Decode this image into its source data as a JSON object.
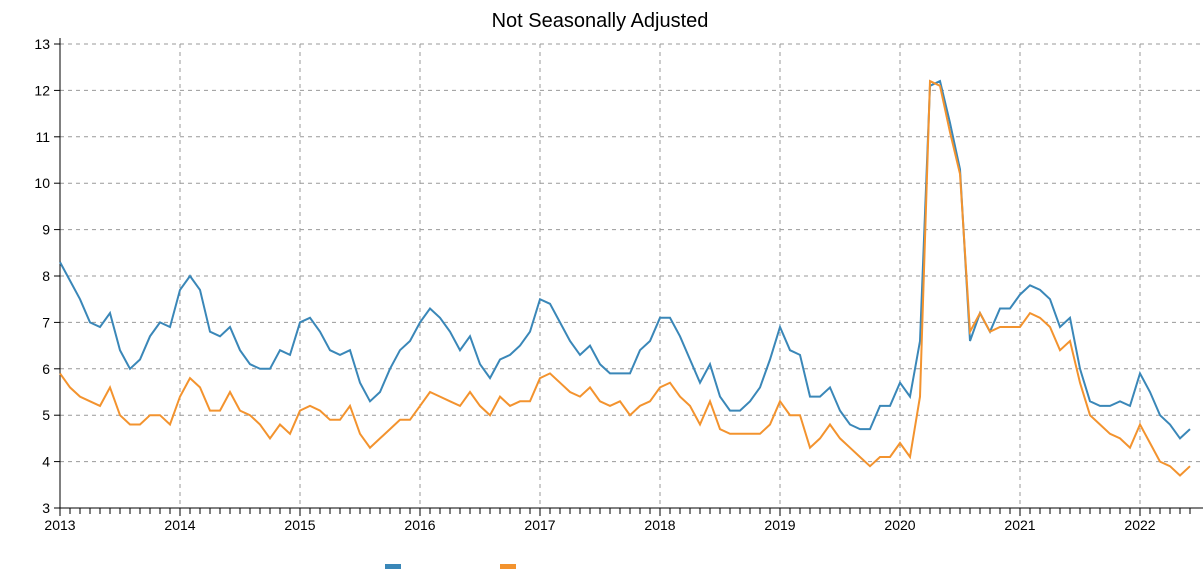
{
  "chart_data": {
    "type": "line",
    "title": "Not Seasonally Adjusted",
    "x": [
      "2013-01",
      "2013-02",
      "2013-03",
      "2013-04",
      "2013-05",
      "2013-06",
      "2013-07",
      "2013-08",
      "2013-09",
      "2013-10",
      "2013-11",
      "2013-12",
      "2014-01",
      "2014-02",
      "2014-03",
      "2014-04",
      "2014-05",
      "2014-06",
      "2014-07",
      "2014-08",
      "2014-09",
      "2014-10",
      "2014-11",
      "2014-12",
      "2015-01",
      "2015-02",
      "2015-03",
      "2015-04",
      "2015-05",
      "2015-06",
      "2015-07",
      "2015-08",
      "2015-09",
      "2015-10",
      "2015-11",
      "2015-12",
      "2016-01",
      "2016-02",
      "2016-03",
      "2016-04",
      "2016-05",
      "2016-06",
      "2016-07",
      "2016-08",
      "2016-09",
      "2016-10",
      "2016-11",
      "2016-12",
      "2017-01",
      "2017-02",
      "2017-03",
      "2017-04",
      "2017-05",
      "2017-06",
      "2017-07",
      "2017-08",
      "2017-09",
      "2017-10",
      "2017-11",
      "2017-12",
      "2018-01",
      "2018-02",
      "2018-03",
      "2018-04",
      "2018-05",
      "2018-06",
      "2018-07",
      "2018-08",
      "2018-09",
      "2018-10",
      "2018-11",
      "2018-12",
      "2019-01",
      "2019-02",
      "2019-03",
      "2019-04",
      "2019-05",
      "2019-06",
      "2019-07",
      "2019-08",
      "2019-09",
      "2019-10",
      "2019-11",
      "2019-12",
      "2020-01",
      "2020-02",
      "2020-03",
      "2020-04",
      "2020-05",
      "2020-06",
      "2020-07",
      "2020-08",
      "2020-09",
      "2020-10",
      "2020-11",
      "2020-12",
      "2021-01",
      "2021-02",
      "2021-03",
      "2021-04",
      "2021-05",
      "2021-06",
      "2021-07",
      "2021-08",
      "2021-09",
      "2021-10",
      "2021-11",
      "2021-12",
      "2022-01",
      "2022-02",
      "2022-03",
      "2022-04",
      "2022-05",
      "2022-06"
    ],
    "series": [
      {
        "color": "#3a87b8",
        "values": [
          8.3,
          7.9,
          7.5,
          7.0,
          6.9,
          7.2,
          6.4,
          6.0,
          6.2,
          6.7,
          7.0,
          6.9,
          7.7,
          8.0,
          7.7,
          6.8,
          6.7,
          6.9,
          6.4,
          6.1,
          6.0,
          6.0,
          6.4,
          6.3,
          7.0,
          7.1,
          6.8,
          6.4,
          6.3,
          6.4,
          5.7,
          5.3,
          5.5,
          6.0,
          6.4,
          6.6,
          7.0,
          7.3,
          7.1,
          6.8,
          6.4,
          6.7,
          6.1,
          5.8,
          6.2,
          6.3,
          6.5,
          6.8,
          7.5,
          7.4,
          7.0,
          6.6,
          6.3,
          6.5,
          6.1,
          5.9,
          5.9,
          5.9,
          6.4,
          6.6,
          7.1,
          7.1,
          6.7,
          6.2,
          5.7,
          6.1,
          5.4,
          5.1,
          5.1,
          5.3,
          5.6,
          6.2,
          6.9,
          6.4,
          6.3,
          5.4,
          5.4,
          5.6,
          5.1,
          4.8,
          4.7,
          4.7,
          5.2,
          5.2,
          5.7,
          5.4,
          6.6,
          12.1,
          12.2,
          11.3,
          10.3,
          6.6,
          7.2,
          6.8,
          7.3,
          7.3,
          7.6,
          7.8,
          7.7,
          7.5,
          6.9,
          7.1,
          6.0,
          5.3,
          5.2,
          5.2,
          5.3,
          5.2,
          5.9,
          5.5,
          5.0,
          4.8,
          4.5,
          4.7
        ]
      },
      {
        "color": "#f3932e",
        "values": [
          5.9,
          5.6,
          5.4,
          5.3,
          5.2,
          5.6,
          5.0,
          4.8,
          4.8,
          5.0,
          5.0,
          4.8,
          5.4,
          5.8,
          5.6,
          5.1,
          5.1,
          5.5,
          5.1,
          5.0,
          4.8,
          4.5,
          4.8,
          4.6,
          5.1,
          5.2,
          5.1,
          4.9,
          4.9,
          5.2,
          4.6,
          4.3,
          4.5,
          4.7,
          4.9,
          4.9,
          5.2,
          5.5,
          5.4,
          5.3,
          5.2,
          5.5,
          5.2,
          5.0,
          5.4,
          5.2,
          5.3,
          5.3,
          5.8,
          5.9,
          5.7,
          5.5,
          5.4,
          5.6,
          5.3,
          5.2,
          5.3,
          5.0,
          5.2,
          5.3,
          5.6,
          5.7,
          5.4,
          5.2,
          4.8,
          5.3,
          4.7,
          4.6,
          4.6,
          4.6,
          4.6,
          4.8,
          5.3,
          5.0,
          5.0,
          4.3,
          4.5,
          4.8,
          4.5,
          4.3,
          4.1,
          3.9,
          4.1,
          4.1,
          4.4,
          4.1,
          5.4,
          12.2,
          12.1,
          11.1,
          10.2,
          6.8,
          7.2,
          6.8,
          6.9,
          6.9,
          6.9,
          7.2,
          7.1,
          6.9,
          6.4,
          6.6,
          5.7,
          5.0,
          4.8,
          4.6,
          4.5,
          4.3,
          4.8,
          4.4,
          4.0,
          3.9,
          3.7,
          3.9
        ]
      }
    ],
    "xlim": [
      "2013-01",
      "2022-06"
    ],
    "xticks": [
      2013,
      2014,
      2015,
      2016,
      2017,
      2018,
      2019,
      2020,
      2021,
      2022
    ],
    "ylim": [
      3,
      13
    ],
    "yticks": [
      3,
      4,
      5,
      6,
      7,
      8,
      9,
      10,
      11,
      12,
      13
    ],
    "grid": true
  }
}
